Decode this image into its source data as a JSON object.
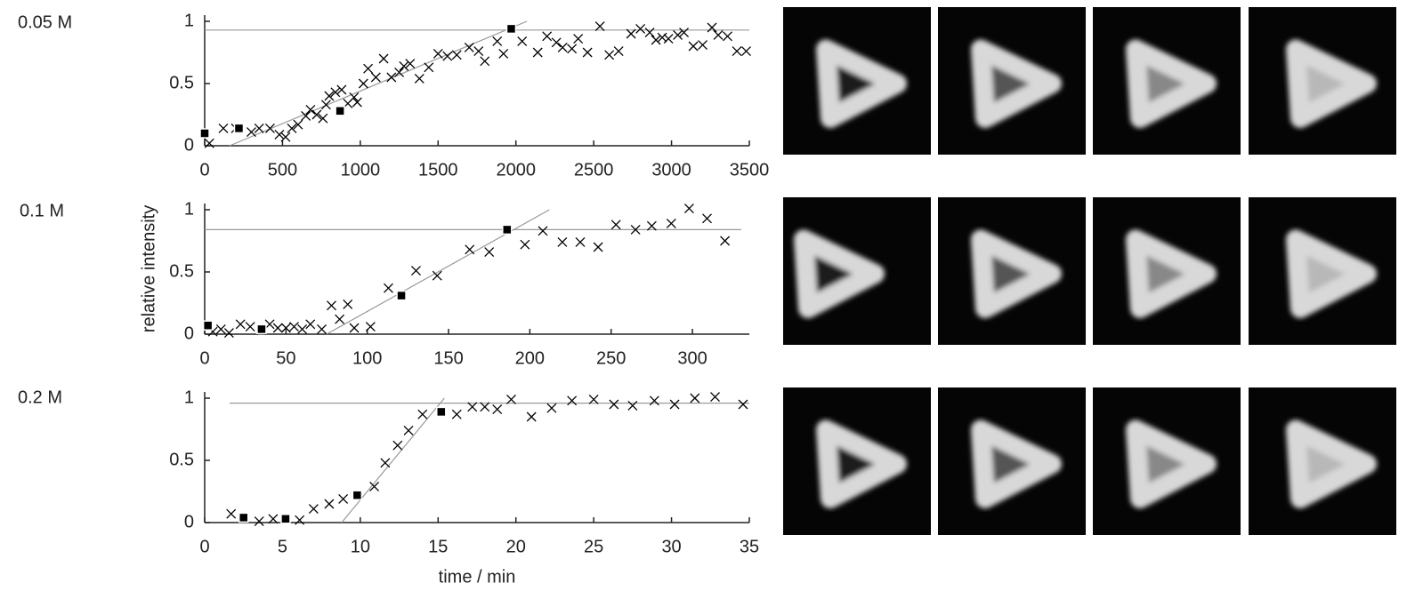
{
  "chart_data": [
    {
      "type": "scatter",
      "label": "0.05 M",
      "xlim": [
        0,
        3500
      ],
      "ylim": [
        0,
        1.05
      ],
      "xticks": [
        0,
        500,
        1000,
        1500,
        2000,
        2500,
        3000,
        3500
      ],
      "yticks": [
        0,
        0.5,
        1
      ],
      "series": [
        {
          "marker": "x",
          "color": "#000000",
          "x": [
            30,
            120,
            200,
            300,
            350,
            420,
            480,
            520,
            560,
            600,
            650,
            680,
            720,
            760,
            780,
            800,
            840,
            880,
            920,
            960,
            980,
            1020,
            1050,
            1100,
            1150,
            1200,
            1250,
            1280,
            1320,
            1380,
            1440,
            1500,
            1560,
            1620,
            1700,
            1760,
            1800,
            1880,
            1920,
            2040,
            2140,
            2200,
            2260,
            2300,
            2360,
            2400,
            2460,
            2540,
            2600,
            2660,
            2740,
            2800,
            2860,
            2900,
            2940,
            2980,
            3040,
            3080,
            3140,
            3200,
            3260,
            3300,
            3360,
            3420,
            3480
          ],
          "values": [
            0.02,
            0.14,
            0.14,
            0.11,
            0.14,
            0.14,
            0.09,
            0.07,
            0.14,
            0.17,
            0.24,
            0.29,
            0.25,
            0.22,
            0.33,
            0.4,
            0.43,
            0.45,
            0.34,
            0.39,
            0.35,
            0.5,
            0.62,
            0.55,
            0.7,
            0.55,
            0.59,
            0.64,
            0.66,
            0.54,
            0.63,
            0.74,
            0.72,
            0.73,
            0.79,
            0.76,
            0.68,
            0.84,
            0.74,
            0.84,
            0.75,
            0.88,
            0.83,
            0.79,
            0.78,
            0.86,
            0.75,
            0.96,
            0.73,
            0.76,
            0.9,
            0.94,
            0.91,
            0.85,
            0.87,
            0.86,
            0.89,
            0.91,
            0.8,
            0.81,
            0.95,
            0.89,
            0.88,
            0.76,
            0.76
          ]
        },
        {
          "marker": "square",
          "color": "#000000",
          "x": [
            0,
            220,
            870,
            1970
          ],
          "values": [
            0.1,
            0.14,
            0.28,
            0.94
          ]
        },
        {
          "marker": "line",
          "color": "#999999",
          "x": [
            0,
            3500
          ],
          "values": [
            0.93,
            0.93
          ]
        },
        {
          "marker": "line",
          "color": "#999999",
          "x": [
            160,
            2070
          ],
          "values": [
            0,
            1
          ]
        }
      ]
    },
    {
      "type": "scatter",
      "label": "0.1 M",
      "ylabel": "relative intensity",
      "xlim": [
        0,
        335
      ],
      "ylim": [
        0,
        1.05
      ],
      "xticks": [
        0,
        50,
        100,
        150,
        200,
        250,
        300
      ],
      "yticks": [
        0,
        0.5,
        1
      ],
      "series": [
        {
          "marker": "x",
          "color": "#000000",
          "x": [
            5,
            10,
            15,
            22,
            28,
            35,
            40,
            45,
            50,
            55,
            60,
            65,
            72,
            78,
            83,
            88,
            92,
            102,
            113,
            130,
            143,
            163,
            175,
            197,
            208,
            220,
            231,
            242,
            253,
            265,
            275,
            287,
            298,
            309,
            320
          ],
          "values": [
            0.02,
            0.04,
            0.01,
            0.08,
            0.06,
            0.03,
            0.08,
            0.05,
            0.05,
            0.06,
            0.04,
            0.08,
            0.04,
            0.23,
            0.12,
            0.24,
            0.05,
            0.06,
            0.37,
            0.51,
            0.47,
            0.68,
            0.66,
            0.72,
            0.83,
            0.74,
            0.74,
            0.7,
            0.88,
            0.84,
            0.87,
            0.89,
            1.01,
            0.93,
            0.75
          ]
        },
        {
          "marker": "square",
          "color": "#000000",
          "x": [
            2,
            35,
            121,
            186
          ],
          "values": [
            0.07,
            0.04,
            0.31,
            0.84
          ]
        },
        {
          "marker": "line",
          "color": "#999999",
          "x": [
            0,
            330
          ],
          "values": [
            0.84,
            0.84
          ]
        },
        {
          "marker": "line",
          "color": "#999999",
          "x": [
            75,
            212
          ],
          "values": [
            0,
            1
          ]
        }
      ]
    },
    {
      "type": "scatter",
      "label": "0.2 M",
      "xlabel": "time / min",
      "xlim": [
        0,
        35
      ],
      "ylim": [
        0,
        1.05
      ],
      "xticks": [
        0,
        5,
        10,
        15,
        20,
        25,
        30,
        35
      ],
      "yticks": [
        0,
        0.5,
        1
      ],
      "series": [
        {
          "marker": "x",
          "color": "#000000",
          "x": [
            1.7,
            3.5,
            4.4,
            6.1,
            7,
            8,
            8.9,
            10.9,
            11.6,
            12.4,
            13.1,
            14,
            16.2,
            17.2,
            18,
            18.8,
            19.7,
            21,
            22.3,
            23.6,
            25,
            26.3,
            27.5,
            28.9,
            30.2,
            31.5,
            32.8,
            34.6
          ],
          "values": [
            0.07,
            0.01,
            0.03,
            0.02,
            0.11,
            0.15,
            0.19,
            0.29,
            0.48,
            0.62,
            0.74,
            0.87,
            0.87,
            0.93,
            0.93,
            0.91,
            0.99,
            0.85,
            0.92,
            0.98,
            0.99,
            0.95,
            0.94,
            0.98,
            0.95,
            1.0,
            1.01,
            0.95
          ]
        },
        {
          "marker": "square",
          "color": "#000000",
          "x": [
            2.5,
            5.2,
            9.8,
            15.2
          ],
          "values": [
            0.04,
            0.03,
            0.22,
            0.89
          ]
        },
        {
          "marker": "line",
          "color": "#999999",
          "x": [
            1.6,
            35
          ],
          "values": [
            0.96,
            0.96
          ]
        },
        {
          "marker": "line",
          "color": "#999999",
          "x": [
            8.8,
            15.4
          ],
          "values": [
            0,
            1
          ]
        }
      ]
    }
  ]
}
